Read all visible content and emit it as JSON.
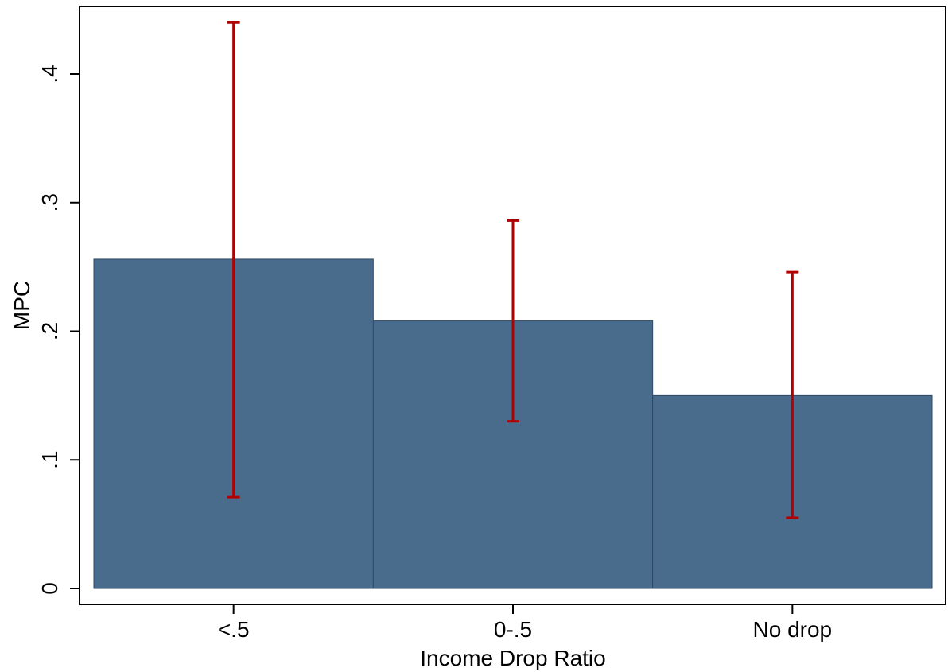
{
  "chart_data": {
    "type": "bar",
    "title": "",
    "xlabel": "Income Drop Ratio",
    "ylabel": "MPC",
    "categories": [
      "<.5",
      "0-.5",
      "No drop"
    ],
    "values": [
      0.256,
      0.208,
      0.15
    ],
    "error_bars": {
      "lower": [
        0.071,
        0.13,
        0.055
      ],
      "upper": [
        0.44,
        0.286,
        0.246
      ]
    },
    "ylim": [
      0,
      0.44
    ],
    "yticks": [
      0,
      0.1,
      0.2,
      0.3,
      0.4
    ],
    "ytick_labels": [
      "0",
      ".1",
      ".2",
      ".3",
      ".4"
    ],
    "grid": false,
    "legend": "none",
    "colors": {
      "bar_fill": "#4a6c8c",
      "bar_edge": "#2e4a66",
      "error_bar": "#b00000",
      "axis": "#000000"
    }
  }
}
